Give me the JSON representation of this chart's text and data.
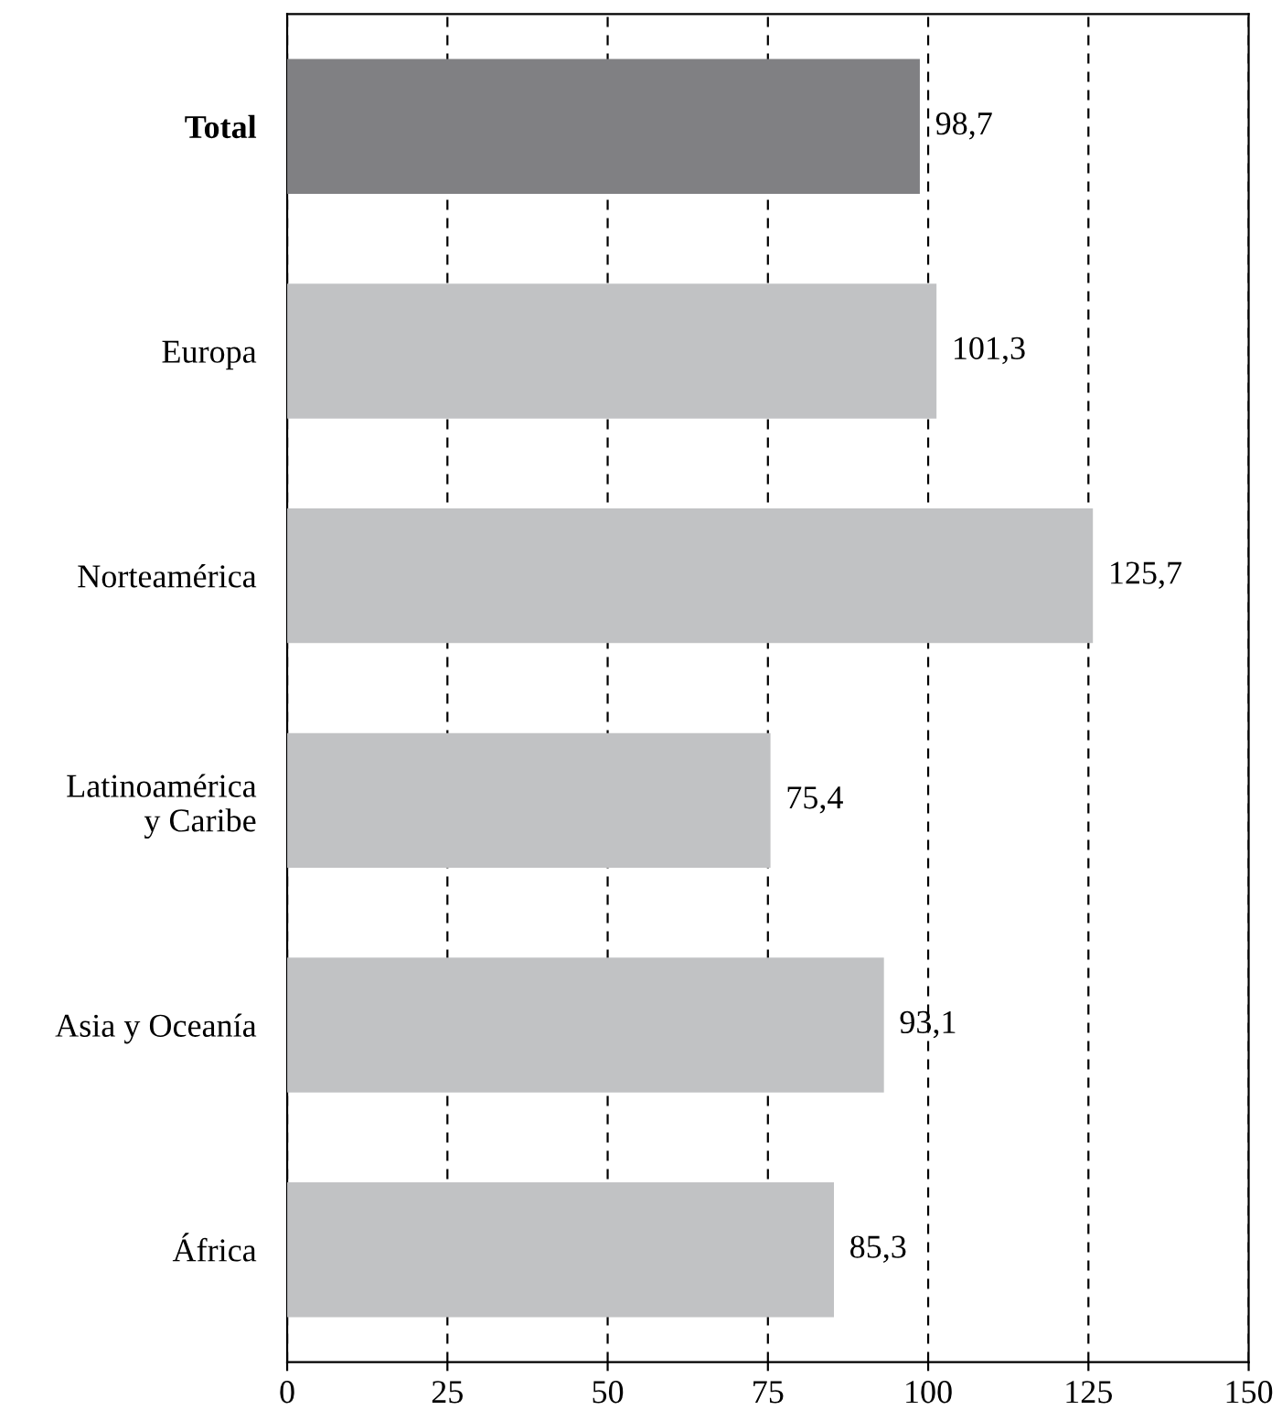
{
  "chart_data": {
    "type": "bar",
    "orientation": "horizontal",
    "categories": [
      "Total",
      "Europa",
      "Norteamérica",
      "Latinoamérica\ny Caribe",
      "Asia y Oceanía",
      "África"
    ],
    "values": [
      98.7,
      101.3,
      125.7,
      75.4,
      93.1,
      85.3
    ],
    "colors": [
      "#808083",
      "#c1c2c4",
      "#c1c2c4",
      "#c1c2c4",
      "#c1c2c4",
      "#c1c2c4"
    ],
    "value_labels": [
      "98,7",
      "101,3",
      "125,7",
      "75,4",
      "93,1",
      "85,3"
    ],
    "xlim": [
      0,
      150
    ],
    "xticks": [
      0,
      25,
      50,
      75,
      100,
      125,
      150
    ],
    "grid": "x",
    "legend": false
  }
}
